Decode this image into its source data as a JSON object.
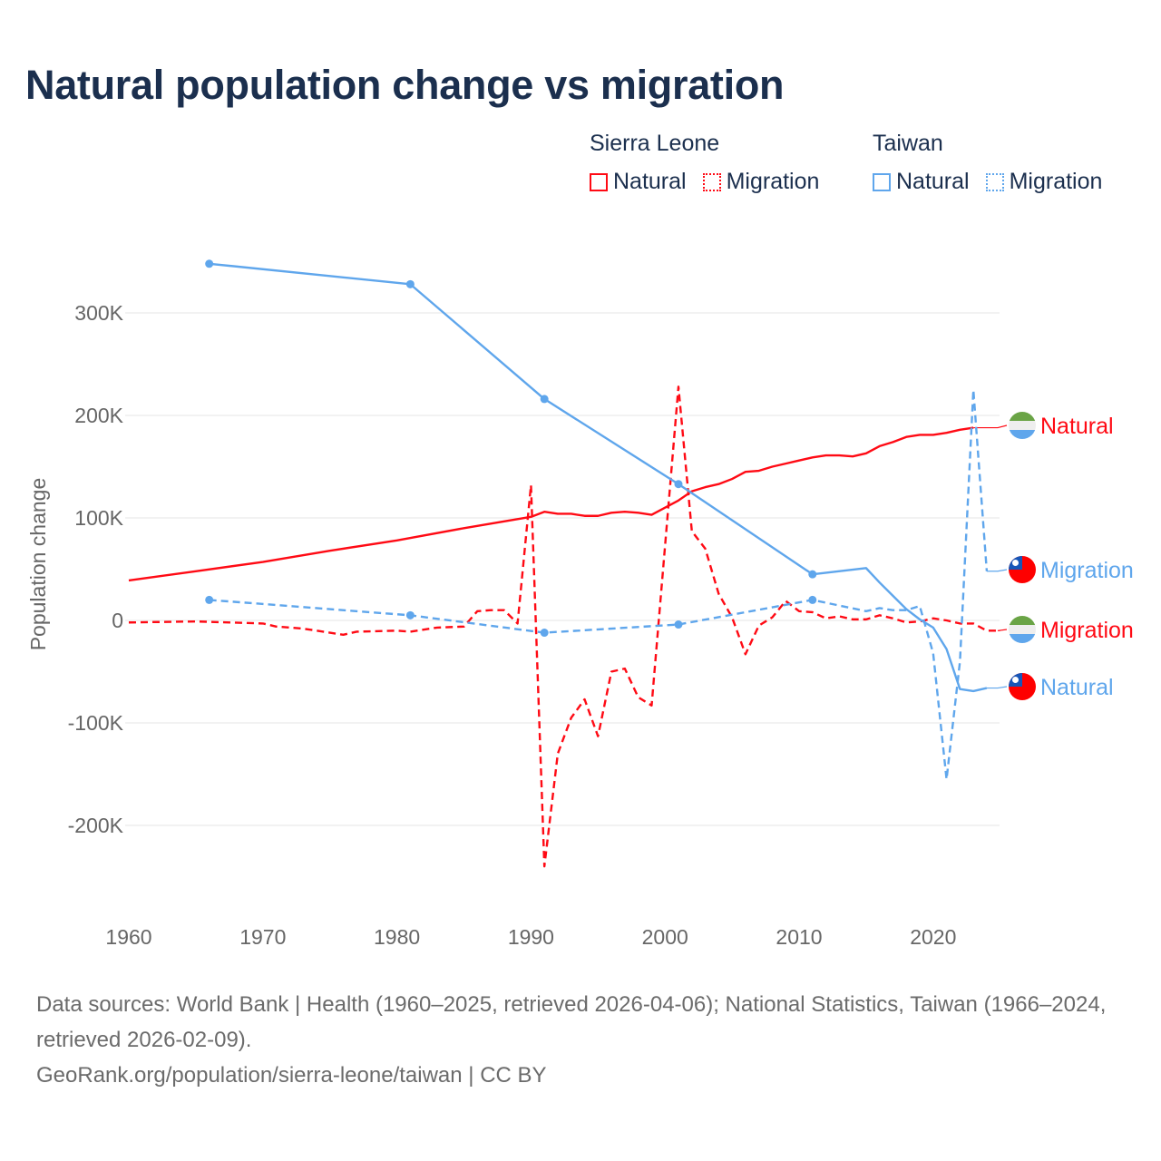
{
  "title": "Natural population change vs migration",
  "legend": [
    {
      "group": "Sierra Leone",
      "color": "#ff0a14",
      "items": [
        {
          "label": "Natural",
          "style": "solid"
        },
        {
          "label": "Migration",
          "style": "dotted"
        }
      ]
    },
    {
      "group": "Taiwan",
      "color": "#5fa6ec",
      "items": [
        {
          "label": "Natural",
          "style": "solid"
        },
        {
          "label": "Migration",
          "style": "dotted"
        }
      ]
    }
  ],
  "footer": {
    "sources": "Data sources: World Bank | Health (1960–2025, retrieved 2026-04-06); National Statistics, Taiwan (1966–2024, retrieved 2026-02-09).",
    "credit": "GeoRank.org/population/sierra-leone/taiwan | CC BY"
  },
  "chart_data": {
    "type": "line",
    "title": "Natural population change vs migration",
    "xlabel": "",
    "ylabel": "Population change",
    "xlim": [
      1960,
      2025
    ],
    "ylim": [
      -250000,
      350000
    ],
    "x_ticks": [
      1960,
      1970,
      1980,
      1990,
      2000,
      2010,
      2020
    ],
    "x_tick_labels": [
      "1960",
      "1970",
      "1980",
      "1990",
      "2000",
      "2010",
      "2020"
    ],
    "y_ticks": [
      -200000,
      -100000,
      0,
      100000,
      200000,
      300000
    ],
    "y_tick_labels": [
      "-200K",
      "-100K",
      "0",
      "100K",
      "200K",
      "300K"
    ],
    "grid": true,
    "series": [
      {
        "name": "Sierra Leone Natural",
        "end_label": "Natural",
        "country": "Sierra Leone",
        "color": "#ff0a14",
        "dash": false,
        "x": [
          1960,
          1965,
          1970,
          1975,
          1980,
          1985,
          1990,
          1991,
          1992,
          1993,
          1994,
          1995,
          1996,
          1997,
          1998,
          1999,
          2000,
          2001,
          2002,
          2003,
          2004,
          2005,
          2006,
          2007,
          2008,
          2009,
          2010,
          2011,
          2012,
          2013,
          2014,
          2015,
          2016,
          2017,
          2018,
          2019,
          2020,
          2021,
          2022,
          2023
        ],
        "y": [
          39000,
          48000,
          57000,
          68000,
          78000,
          90000,
          101000,
          106000,
          104000,
          104000,
          102000,
          102000,
          105000,
          106000,
          105000,
          103000,
          110000,
          117000,
          126000,
          130000,
          133000,
          138000,
          145000,
          146000,
          150000,
          153000,
          156000,
          159000,
          161000,
          161000,
          160000,
          163000,
          170000,
          174000,
          179000,
          181000,
          181000,
          183000,
          186000,
          188000
        ]
      },
      {
        "name": "Sierra Leone Migration",
        "end_label": "Migration",
        "country": "Sierra Leone",
        "color": "#ff0a14",
        "dash": true,
        "x": [
          1960,
          1965,
          1970,
          1971,
          1973,
          1976,
          1977,
          1980,
          1981,
          1983,
          1985,
          1986,
          1987,
          1988,
          1989,
          1990,
          1991,
          1992,
          1993,
          1994,
          1995,
          1996,
          1997,
          1998,
          1999,
          2001,
          2002,
          2003,
          2004,
          2005,
          2006,
          2007,
          2008,
          2009,
          2010,
          2011,
          2012,
          2013,
          2014,
          2015,
          2016,
          2017,
          2018,
          2019,
          2020,
          2021,
          2022,
          2023,
          2024,
          2025
        ],
        "y": [
          -2000,
          -1000,
          -3000,
          -6000,
          -8000,
          -14000,
          -11000,
          -10000,
          -11000,
          -7000,
          -6000,
          9000,
          10000,
          10000,
          -3000,
          132000,
          -240000,
          -130000,
          -95000,
          -77000,
          -113000,
          -50000,
          -47000,
          -75000,
          -83000,
          228000,
          87000,
          70000,
          26000,
          3000,
          -33000,
          -5000,
          3000,
          19000,
          9000,
          8000,
          2000,
          4000,
          1000,
          1000,
          5000,
          2000,
          -2000,
          -1000,
          2000,
          0,
          -3000,
          -3000,
          -10000,
          -10000
        ]
      },
      {
        "name": "Taiwan Natural",
        "end_label": "Natural",
        "country": "Taiwan",
        "color": "#5fa6ec",
        "dash": false,
        "x": [
          1966,
          1981,
          1991,
          2001,
          2011,
          2015,
          2016,
          2017,
          2018,
          2019,
          2020,
          2021,
          2022,
          2023,
          2024
        ],
        "y": [
          348000,
          328000,
          216000,
          133000,
          45000,
          51000,
          37000,
          24000,
          11000,
          1000,
          -7000,
          -28000,
          -67000,
          -69000,
          -66000
        ]
      },
      {
        "name": "Taiwan Migration",
        "end_label": "Migration",
        "country": "Taiwan",
        "color": "#5fa6ec",
        "dash": true,
        "x": [
          1966,
          1981,
          1991,
          2001,
          2011,
          2015,
          2016,
          2017,
          2018,
          2019,
          2020,
          2021,
          2022,
          2023,
          2024
        ],
        "y": [
          20000,
          5000,
          -12000,
          -4000,
          20000,
          9000,
          12000,
          10000,
          10000,
          14000,
          -32000,
          -155000,
          -40000,
          225000,
          48000
        ]
      }
    ]
  }
}
